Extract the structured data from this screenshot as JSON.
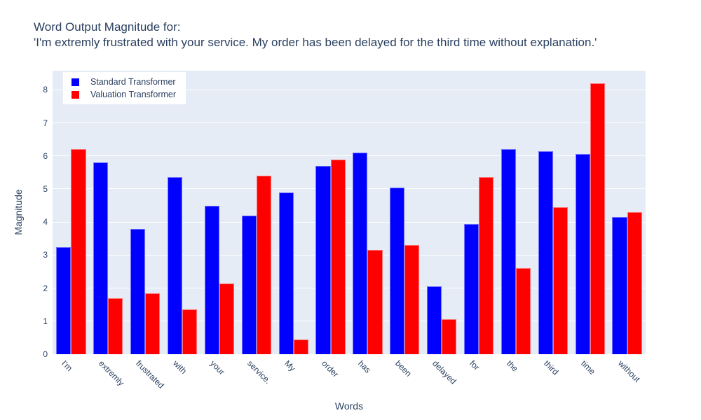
{
  "title": {
    "line1": "Word Output Magnitude for:",
    "line2": "'I'm extremly frustrated with your service. My order has been delayed for the third time without explanation.'"
  },
  "chart_data": {
    "type": "bar",
    "title": "Word Output Magnitude for: 'I'm extremly frustrated with your service. My order has been delayed for the third time without explanation.'",
    "xlabel": "Words",
    "ylabel": "Magnitude",
    "ylim": [
      0,
      8.58
    ],
    "yticks": [
      0,
      1,
      2,
      3,
      4,
      5,
      6,
      7,
      8
    ],
    "grid": true,
    "legend_position": "top-left",
    "plot_bgcolor": "#e5ecf6",
    "grid_color": "#ffffff",
    "categories": [
      "I'm",
      "extremly",
      "frustrated",
      "with",
      "your",
      "service.",
      "My",
      "order",
      "has",
      "been",
      "delayed",
      "for",
      "the",
      "third",
      "time",
      "without"
    ],
    "series": [
      {
        "name": "Standard Transformer",
        "color": "#0000ff",
        "values": [
          3.25,
          5.8,
          3.8,
          5.35,
          4.5,
          4.2,
          4.9,
          5.7,
          6.1,
          5.05,
          2.05,
          3.95,
          6.2,
          6.15,
          6.05,
          4.15
        ]
      },
      {
        "name": "Valuation Transformer",
        "color": "#ff0000",
        "values": [
          6.2,
          1.7,
          1.85,
          1.35,
          2.15,
          5.4,
          0.45,
          5.9,
          3.15,
          3.3,
          1.05,
          5.35,
          2.6,
          4.45,
          8.2,
          4.3
        ]
      }
    ]
  },
  "colors": {
    "text": "#2a3f5f",
    "standard_bar": "#0000ff",
    "valuation_bar": "#ff0000",
    "plot_background": "#e5ecf6",
    "gridline": "#ffffff"
  }
}
